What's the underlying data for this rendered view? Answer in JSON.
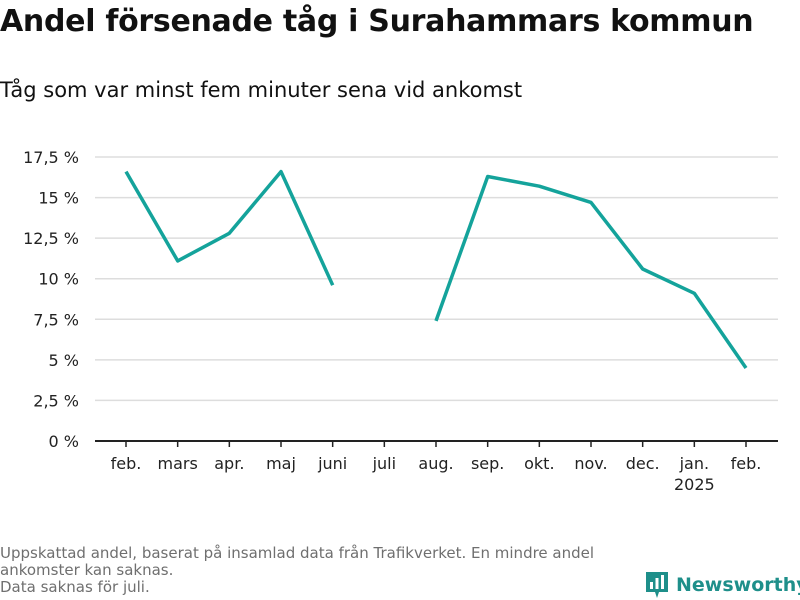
{
  "header": {
    "title": "Andel försenade tåg i Surahammars kommun",
    "subtitle": "Tåg som var minst fem minuter sena vid ankomst"
  },
  "footnote": {
    "lines": [
      "Uppskattad andel, baserat på insamlad data från Trafikverket. En mindre andel",
      "ankomster kan saknas.",
      "Data saknas för juli."
    ]
  },
  "brand": {
    "name": "Newsworthy",
    "icon": "bar-chart-icon",
    "color": "#1e8f8a"
  },
  "chart_data": {
    "type": "line",
    "title": "Andel försenade tåg i Surahammars kommun",
    "subtitle": "Tåg som var minst fem minuter sena vid ankomst",
    "xlabel": "",
    "ylabel": "",
    "categories": [
      "feb.",
      "mars",
      "apr.",
      "maj",
      "juni",
      "juli",
      "aug.",
      "sep.",
      "okt.",
      "nov.",
      "dec.",
      "jan.",
      "feb."
    ],
    "category_sublabels": [
      "",
      "",
      "",
      "",
      "",
      "",
      "",
      "",
      "",
      "",
      "",
      "2025",
      ""
    ],
    "series": [
      {
        "values": [
          16.6,
          11.1,
          12.8,
          16.6,
          9.6,
          null,
          7.4,
          16.3,
          15.7,
          14.7,
          10.6,
          9.1,
          4.5
        ],
        "color": "#14a39b"
      }
    ],
    "ylim": [
      0,
      17.5
    ],
    "yticks": [
      0,
      2.5,
      5,
      7.5,
      10,
      12.5,
      15,
      17.5
    ],
    "ytick_labels": [
      "0 %",
      "2,5 %",
      "5 %",
      "7,5 %",
      "10 %",
      "12,5 %",
      "15 %",
      "17,5 %"
    ],
    "grid": true,
    "legend": "none"
  }
}
